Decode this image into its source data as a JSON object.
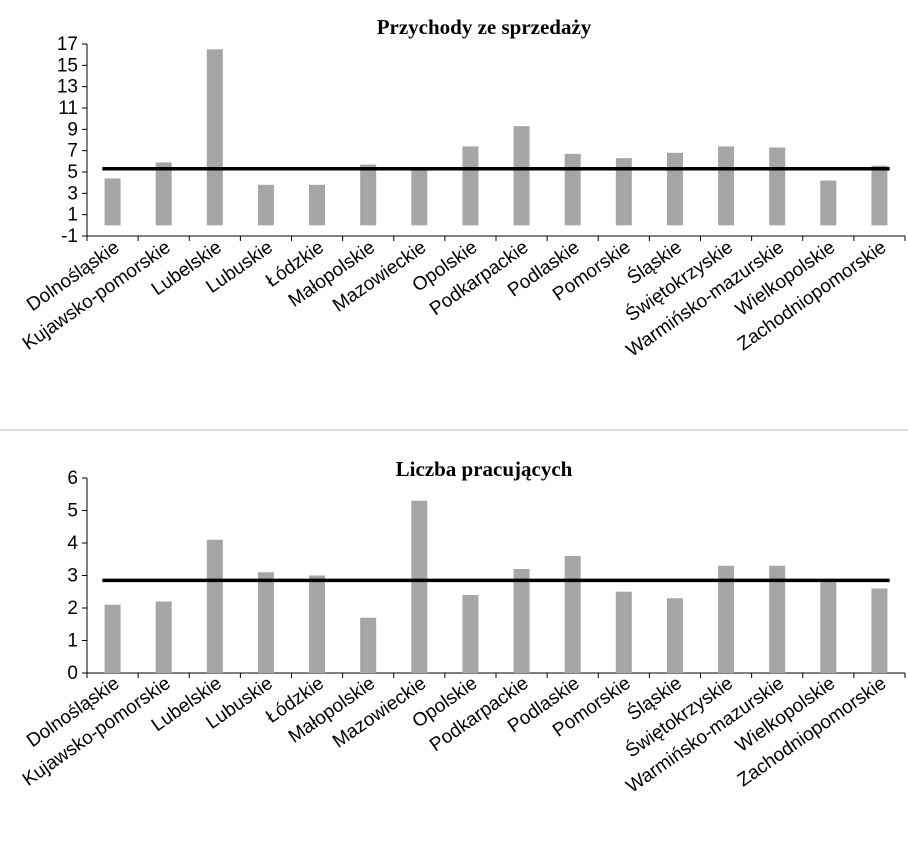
{
  "chart_data": [
    {
      "type": "bar",
      "title": "Przychody ze sprzedaży",
      "xlabel": "",
      "ylabel": "",
      "categories": [
        "Dolnośląskie",
        "Kujawsko-pomorskie",
        "Lubelskie",
        "Lubuskie",
        "Łódzkie",
        "Małopolskie",
        "Mazowieckie",
        "Opolskie",
        "Podkarpackie",
        "Podlaskie",
        "Pomorskie",
        "Śląskie",
        "Świętokrzyskie",
        "Warmińsko-mazurskie",
        "Wielkopolskie",
        "Zachodniopomorskie"
      ],
      "series": [
        {
          "values": [
            4.4,
            5.9,
            16.5,
            3.8,
            3.8,
            5.7,
            5.2,
            7.4,
            9.3,
            6.7,
            6.3,
            6.8,
            7.4,
            7.3,
            4.2,
            5.6
          ]
        }
      ],
      "reference_line": 5.3,
      "ylim": [
        -1,
        17
      ],
      "yticks": [
        -1,
        1,
        3,
        5,
        7,
        9,
        11,
        13,
        15,
        17
      ],
      "ytick_labels": [
        "-1",
        "1",
        "3",
        "5",
        "7",
        "9",
        "11",
        "13",
        "15",
        "17"
      ],
      "grid": false,
      "legend": "none",
      "bar_color": "#a6a6a6",
      "line_color": "#000000"
    },
    {
      "type": "bar",
      "title": "Liczba pracujących",
      "xlabel": "",
      "ylabel": "",
      "categories": [
        "Dolnośląskie",
        "Kujawsko-pomorskie",
        "Lubelskie",
        "Lubuskie",
        "Łódzkie",
        "Małopolskie",
        "Mazowieckie",
        "Opolskie",
        "Podkarpackie",
        "Podlaskie",
        "Pomorskie",
        "Śląskie",
        "Świętokrzyskie",
        "Warmińsko-mazurskie",
        "Wielkopolskie",
        "Zachodniopomorskie"
      ],
      "series": [
        {
          "values": [
            2.1,
            2.2,
            4.1,
            3.1,
            3.0,
            1.7,
            5.3,
            2.4,
            3.2,
            3.6,
            2.5,
            2.3,
            3.3,
            3.3,
            2.8,
            2.6
          ]
        }
      ],
      "reference_line": 2.85,
      "ylim": [
        0,
        6
      ],
      "yticks": [
        0,
        1,
        2,
        3,
        4,
        5,
        6
      ],
      "ytick_labels": [
        "0",
        "1",
        "2",
        "3",
        "4",
        "5",
        "6"
      ],
      "grid": false,
      "legend": "none",
      "bar_color": "#a6a6a6",
      "line_color": "#000000"
    }
  ]
}
